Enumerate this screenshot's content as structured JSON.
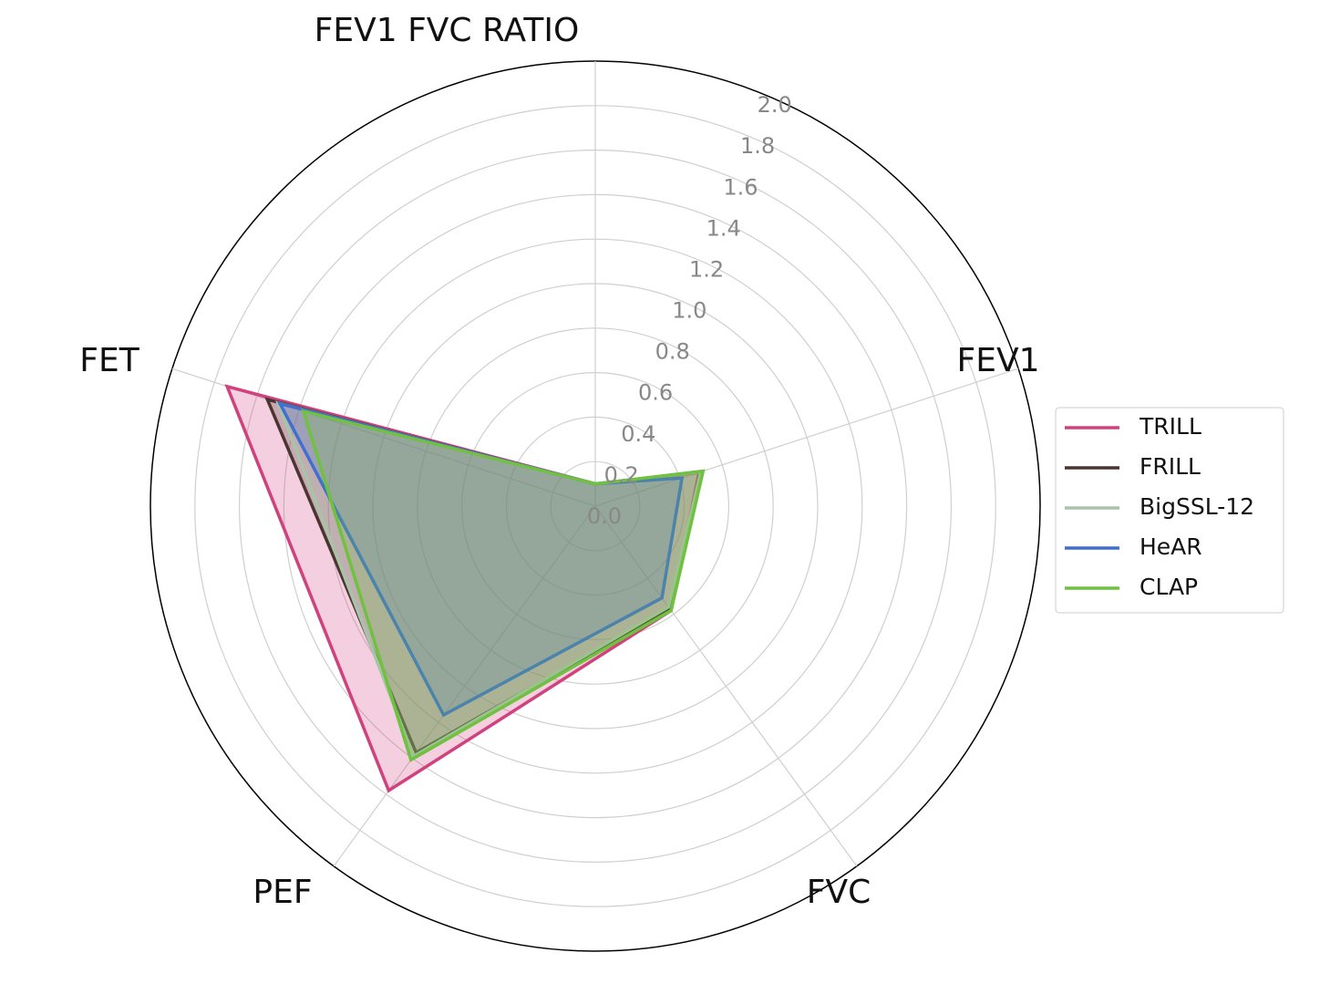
{
  "chart_data": {
    "type": "radar",
    "categories": [
      "FEV1 FVC RATIO",
      "FEV1",
      "FVC",
      "PEF",
      "FET"
    ],
    "series": [
      {
        "name": "TRILL",
        "color": "#d0417e",
        "values": [
          0.1,
          0.49,
          0.58,
          1.58,
          1.74
        ]
      },
      {
        "name": "FRILL",
        "color": "#4a3530",
        "values": [
          0.1,
          0.5,
          0.57,
          1.37,
          1.55
        ]
      },
      {
        "name": "BigSSL-12",
        "color": "#a8c4a8",
        "values": [
          0.1,
          0.5,
          0.56,
          1.39,
          1.5
        ]
      },
      {
        "name": "HeAR",
        "color": "#3f6fd0",
        "values": [
          0.1,
          0.41,
          0.51,
          1.16,
          1.49
        ]
      },
      {
        "name": "CLAP",
        "color": "#6fc13f",
        "values": [
          0.1,
          0.51,
          0.58,
          1.41,
          1.38
        ]
      }
    ],
    "rlim": [
      0,
      2
    ],
    "rticks": [
      {
        "value": 0,
        "label": "0.0"
      },
      {
        "value": 0.2,
        "label": "0.2"
      },
      {
        "value": 0.4,
        "label": "0.4"
      },
      {
        "value": 0.6,
        "label": "0.6"
      },
      {
        "value": 0.8,
        "label": "0.8"
      },
      {
        "value": 1,
        "label": "1.0"
      },
      {
        "value": 1.2,
        "label": "1.2"
      },
      {
        "value": 1.4,
        "label": "1.4"
      },
      {
        "value": 1.6,
        "label": "1.6"
      },
      {
        "value": 1.8,
        "label": "1.8"
      },
      {
        "value": 2,
        "label": "2.0"
      }
    ],
    "grid": true,
    "fill_opacity": 0.25,
    "legend": "right"
  }
}
